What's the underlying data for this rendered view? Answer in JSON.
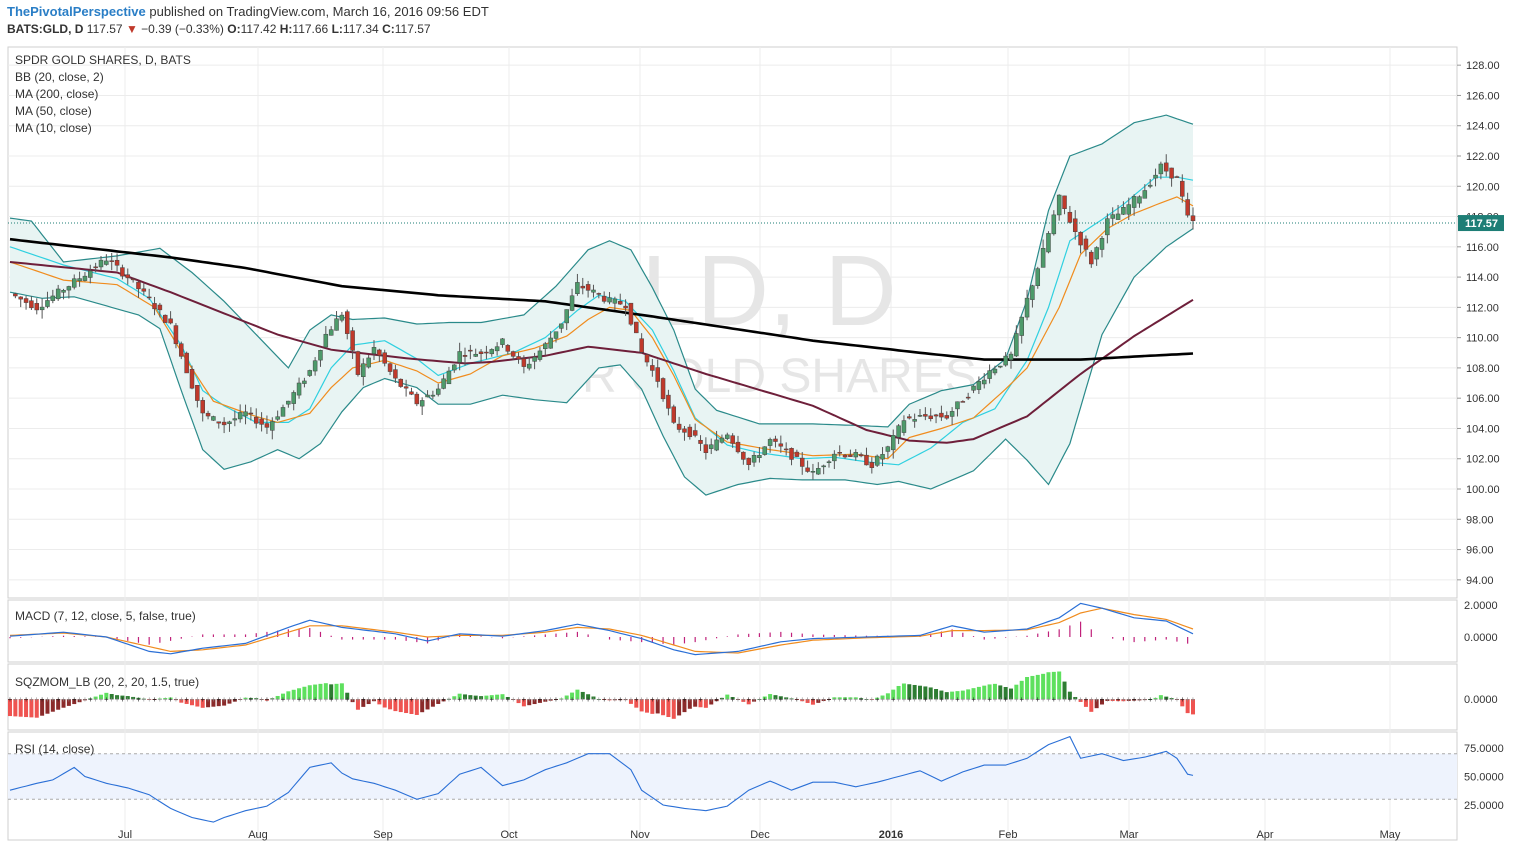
{
  "header": {
    "author": "ThePivotalPerspective",
    "published": "published on TradingView.com, March 16, 2016 09:56 EDT",
    "symbol": "BATS:GLD, D",
    "last": "117.57",
    "change_arrow": "▼",
    "change": "−0.39 (−0.33%)",
    "o_label": "O:",
    "o": "117.42",
    "h_label": "H:",
    "h": "117.66",
    "l_label": "L:",
    "l": "117.34",
    "c_label": "C:",
    "c": "117.57"
  },
  "colors": {
    "up_candle": "#4d9a6a",
    "down_candle": "#c0392b",
    "bb": "#2a8a8a",
    "bb_fill": "#e8f4f3",
    "ma200": "#000000",
    "ma50": "#6e1f3a",
    "ma10": "#f08c1e",
    "basis": "#2fd0e0",
    "macd_line": "#2a6fd6",
    "macd_signal": "#f08c1e",
    "hist": "#c0207a",
    "sqz_pos": "#4caf50",
    "sqz_neg": "#d84b4b",
    "rsi": "#2a6fd6",
    "rsi_band": "#eef3fd",
    "label_bg": "#1e7e76"
  },
  "watermark": {
    "symbol": "GLD, D",
    "name": "SPDR GOLD SHARES"
  },
  "legend": [
    "SPDR GOLD SHARES, D, BATS",
    "BB (20, close, 2)",
    "MA (200, close)",
    "MA (50, close)",
    "MA (10, close)"
  ],
  "panes": {
    "macd": {
      "label": "MACD (7, 12, close, 5, false, true)",
      "ticks": [
        "2.0000",
        "0.0000"
      ]
    },
    "sqz": {
      "label": "SQZMOM_LB (20, 2, 20, 1.5, true)",
      "ticks": [
        "0.0000"
      ]
    },
    "rsi": {
      "label": "RSI (14, close)",
      "ticks": [
        "75.0000",
        "50.0000",
        "25.0000"
      ]
    }
  },
  "last_price_label": "117.57",
  "chart_data": {
    "type": "candlestick",
    "ylim": [
      92.8,
      129.2
    ],
    "y_ticks": [
      "128.00",
      "126.00",
      "124.00",
      "122.00",
      "120.00",
      "118.00",
      "116.00",
      "114.00",
      "112.00",
      "110.00",
      "108.00",
      "106.00",
      "104.00",
      "102.00",
      "100.00",
      "98.00",
      "96.00",
      "94.00"
    ],
    "x_ticks": [
      "Jul",
      "Aug",
      "Sep",
      "Oct",
      "Nov",
      "Dec",
      "2016",
      "Feb",
      "Mar",
      "Apr",
      "May"
    ],
    "price_path": [
      [
        0,
        112.9
      ],
      [
        5,
        112.0
      ],
      [
        12,
        113.7
      ],
      [
        18,
        115.2
      ],
      [
        22,
        114.0
      ],
      [
        26,
        112.5
      ],
      [
        30,
        110.8
      ],
      [
        36,
        104.9
      ],
      [
        40,
        104.3
      ],
      [
        44,
        105.0
      ],
      [
        48,
        104.1
      ],
      [
        52,
        105.8
      ],
      [
        56,
        107.8
      ],
      [
        59,
        110.2
      ],
      [
        62,
        111.6
      ],
      [
        65,
        107.6
      ],
      [
        68,
        109.3
      ],
      [
        72,
        107.2
      ],
      [
        76,
        105.7
      ],
      [
        80,
        106.6
      ],
      [
        84,
        109.0
      ],
      [
        88,
        109.0
      ],
      [
        92,
        109.7
      ],
      [
        96,
        108.0
      ],
      [
        100,
        109.5
      ],
      [
        103,
        111.0
      ],
      [
        106,
        113.5
      ],
      [
        109,
        113.0
      ],
      [
        112,
        112.4
      ],
      [
        115,
        112.2
      ],
      [
        118,
        109.0
      ],
      [
        121,
        107.2
      ],
      [
        124,
        104.2
      ],
      [
        127,
        103.7
      ],
      [
        130,
        102.5
      ],
      [
        134,
        103.7
      ],
      [
        138,
        101.6
      ],
      [
        142,
        103.2
      ],
      [
        146,
        102.2
      ],
      [
        150,
        101.0
      ],
      [
        154,
        102.4
      ],
      [
        158,
        102.2
      ],
      [
        161,
        101.6
      ],
      [
        164,
        102.7
      ],
      [
        167,
        104.6
      ],
      [
        171,
        104.8
      ],
      [
        175,
        104.8
      ],
      [
        179,
        106.3
      ],
      [
        183,
        107.8
      ],
      [
        187,
        108.8
      ],
      [
        190,
        112.5
      ],
      [
        193,
        115.7
      ],
      [
        196,
        119.2
      ],
      [
        199,
        117.0
      ],
      [
        202,
        115.0
      ],
      [
        205,
        117.7
      ],
      [
        208,
        118.4
      ],
      [
        212,
        119.8
      ],
      [
        215,
        121.3
      ],
      [
        218,
        120.5
      ],
      [
        220,
        117.9
      ],
      [
        221,
        117.6
      ]
    ],
    "ma200_path": [
      [
        0,
        116.5
      ],
      [
        30,
        115.3
      ],
      [
        44,
        114.6
      ],
      [
        62,
        113.4
      ],
      [
        80,
        112.8
      ],
      [
        100,
        112.4
      ],
      [
        120,
        111.4
      ],
      [
        150,
        109.8
      ],
      [
        170,
        109.0
      ],
      [
        182,
        108.55
      ],
      [
        200,
        108.55
      ],
      [
        210,
        108.75
      ],
      [
        221,
        108.95
      ]
    ],
    "ma50_path": [
      [
        0,
        115.0
      ],
      [
        20,
        114.3
      ],
      [
        30,
        113.0
      ],
      [
        50,
        110.2
      ],
      [
        60,
        109.2
      ],
      [
        75,
        108.6
      ],
      [
        85,
        108.3
      ],
      [
        90,
        108.4
      ],
      [
        100,
        108.8
      ],
      [
        108,
        109.4
      ],
      [
        118,
        109.0
      ],
      [
        130,
        107.6
      ],
      [
        150,
        105.5
      ],
      [
        160,
        103.9
      ],
      [
        168,
        103.2
      ],
      [
        175,
        103.05
      ],
      [
        180,
        103.3
      ],
      [
        190,
        104.8
      ],
      [
        200,
        107.6
      ],
      [
        210,
        110.1
      ],
      [
        221,
        112.5
      ]
    ],
    "ma10_path": [
      [
        0,
        115.0
      ],
      [
        10,
        113.8
      ],
      [
        20,
        113.5
      ],
      [
        27,
        112.0
      ],
      [
        33,
        108.5
      ],
      [
        38,
        105.8
      ],
      [
        45,
        104.9
      ],
      [
        50,
        104.4
      ],
      [
        56,
        105.0
      ],
      [
        60,
        106.7
      ],
      [
        64,
        108.0
      ],
      [
        70,
        108.5
      ],
      [
        76,
        107.8
      ],
      [
        80,
        107.0
      ],
      [
        86,
        107.6
      ],
      [
        92,
        108.8
      ],
      [
        98,
        109.3
      ],
      [
        104,
        110.1
      ],
      [
        108,
        111.2
      ],
      [
        112,
        112.0
      ],
      [
        116,
        111.8
      ],
      [
        120,
        110.0
      ],
      [
        124,
        107.5
      ],
      [
        128,
        104.6
      ],
      [
        134,
        103.1
      ],
      [
        142,
        102.6
      ],
      [
        150,
        102.2
      ],
      [
        158,
        102.3
      ],
      [
        164,
        102.0
      ],
      [
        168,
        103.4
      ],
      [
        174,
        104.0
      ],
      [
        180,
        104.7
      ],
      [
        186,
        106.6
      ],
      [
        190,
        108.0
      ],
      [
        196,
        112.0
      ],
      [
        200,
        115.5
      ],
      [
        205,
        117.2
      ],
      [
        210,
        118.2
      ],
      [
        215,
        118.9
      ],
      [
        218,
        119.3
      ],
      [
        221,
        118.7
      ]
    ],
    "basis_path": [
      [
        0,
        116.0
      ],
      [
        10,
        114.8
      ],
      [
        20,
        113.9
      ],
      [
        26,
        112.6
      ],
      [
        32,
        109.5
      ],
      [
        36,
        106.5
      ],
      [
        40,
        105.5
      ],
      [
        46,
        104.4
      ],
      [
        52,
        104.4
      ],
      [
        56,
        105.3
      ],
      [
        60,
        108.0
      ],
      [
        64,
        109.5
      ],
      [
        70,
        109.8
      ],
      [
        76,
        108.6
      ],
      [
        80,
        107.5
      ],
      [
        86,
        108.3
      ],
      [
        94,
        109.0
      ],
      [
        100,
        110.0
      ],
      [
        106,
        111.8
      ],
      [
        110,
        112.8
      ],
      [
        115,
        112.4
      ],
      [
        120,
        110.5
      ],
      [
        124,
        107.8
      ],
      [
        128,
        104.7
      ],
      [
        134,
        102.9
      ],
      [
        140,
        102.4
      ],
      [
        148,
        102.0
      ],
      [
        154,
        102.1
      ],
      [
        160,
        101.8
      ],
      [
        166,
        101.6
      ],
      [
        172,
        102.7
      ],
      [
        178,
        104.4
      ],
      [
        184,
        105.3
      ],
      [
        190,
        108.5
      ],
      [
        194,
        112.0
      ],
      [
        198,
        116.4
      ],
      [
        204,
        117.8
      ],
      [
        208,
        118.8
      ],
      [
        214,
        120.6
      ],
      [
        218,
        120.6
      ],
      [
        221,
        120.4
      ]
    ],
    "bb_upper": [
      [
        0,
        117.9
      ],
      [
        4,
        117.7
      ],
      [
        10,
        115.0
      ],
      [
        20,
        115.4
      ],
      [
        28,
        115.9
      ],
      [
        34,
        114.3
      ],
      [
        40,
        112.4
      ],
      [
        46,
        110.2
      ],
      [
        52,
        108.0
      ],
      [
        56,
        110.5
      ],
      [
        60,
        111.5
      ],
      [
        64,
        111.2
      ],
      [
        70,
        111.3
      ],
      [
        76,
        110.9
      ],
      [
        82,
        111.0
      ],
      [
        88,
        111.0
      ],
      [
        96,
        111.5
      ],
      [
        102,
        113.4
      ],
      [
        108,
        115.8
      ],
      [
        112,
        116.4
      ],
      [
        116,
        115.8
      ],
      [
        120,
        113.3
      ],
      [
        124,
        110.5
      ],
      [
        128,
        106.6
      ],
      [
        132,
        105.2
      ],
      [
        140,
        104.3
      ],
      [
        150,
        104.3
      ],
      [
        158,
        104.2
      ],
      [
        164,
        104.1
      ],
      [
        168,
        105.6
      ],
      [
        174,
        106.5
      ],
      [
        180,
        106.9
      ],
      [
        186,
        108.6
      ],
      [
        190,
        112.5
      ],
      [
        194,
        118.4
      ],
      [
        198,
        122.0
      ],
      [
        204,
        122.8
      ],
      [
        210,
        124.2
      ],
      [
        216,
        124.7
      ],
      [
        221,
        124.1
      ]
    ],
    "bb_lower": [
      [
        0,
        113.0
      ],
      [
        6,
        112.6
      ],
      [
        12,
        112.7
      ],
      [
        18,
        112.1
      ],
      [
        24,
        111.5
      ],
      [
        28,
        110.6
      ],
      [
        32,
        106.5
      ],
      [
        36,
        102.6
      ],
      [
        40,
        101.3
      ],
      [
        45,
        101.8
      ],
      [
        50,
        102.6
      ],
      [
        54,
        102.0
      ],
      [
        58,
        103.0
      ],
      [
        62,
        105.1
      ],
      [
        66,
        106.7
      ],
      [
        70,
        107.3
      ],
      [
        76,
        106.7
      ],
      [
        80,
        105.6
      ],
      [
        86,
        105.6
      ],
      [
        92,
        106.2
      ],
      [
        98,
        105.9
      ],
      [
        104,
        105.7
      ],
      [
        110,
        108.0
      ],
      [
        114,
        108.2
      ],
      [
        118,
        106.6
      ],
      [
        122,
        103.5
      ],
      [
        126,
        100.8
      ],
      [
        130,
        99.6
      ],
      [
        136,
        100.3
      ],
      [
        142,
        100.7
      ],
      [
        148,
        100.6
      ],
      [
        156,
        100.6
      ],
      [
        162,
        100.3
      ],
      [
        166,
        100.5
      ],
      [
        172,
        100.0
      ],
      [
        180,
        101.2
      ],
      [
        186,
        103.3
      ],
      [
        190,
        101.9
      ],
      [
        194,
        100.3
      ],
      [
        198,
        103.0
      ],
      [
        204,
        110.2
      ],
      [
        210,
        114.0
      ],
      [
        216,
        116.0
      ],
      [
        221,
        117.2
      ]
    ],
    "macd_path": [
      [
        0,
        0.05
      ],
      [
        10,
        0.3
      ],
      [
        18,
        0.0
      ],
      [
        26,
        -0.9
      ],
      [
        30,
        -1.05
      ],
      [
        36,
        -0.7
      ],
      [
        44,
        -0.4
      ],
      [
        52,
        0.6
      ],
      [
        56,
        1.05
      ],
      [
        62,
        0.6
      ],
      [
        72,
        0.2
      ],
      [
        78,
        -0.25
      ],
      [
        84,
        0.2
      ],
      [
        92,
        0.05
      ],
      [
        100,
        0.4
      ],
      [
        106,
        0.8
      ],
      [
        112,
        0.4
      ],
      [
        118,
        -0.1
      ],
      [
        124,
        -0.8
      ],
      [
        128,
        -1.1
      ],
      [
        136,
        -0.9
      ],
      [
        144,
        -0.3
      ],
      [
        150,
        -0.1
      ],
      [
        160,
        0.0
      ],
      [
        170,
        0.1
      ],
      [
        176,
        0.7
      ],
      [
        182,
        0.3
      ],
      [
        190,
        0.5
      ],
      [
        196,
        1.2
      ],
      [
        200,
        2.1
      ],
      [
        204,
        1.8
      ],
      [
        210,
        1.2
      ],
      [
        216,
        1.0
      ],
      [
        221,
        0.2
      ]
    ],
    "signal_path": [
      [
        0,
        0.1
      ],
      [
        10,
        0.25
      ],
      [
        18,
        0.0
      ],
      [
        26,
        -0.6
      ],
      [
        30,
        -0.9
      ],
      [
        36,
        -0.8
      ],
      [
        44,
        -0.5
      ],
      [
        52,
        0.3
      ],
      [
        56,
        0.7
      ],
      [
        62,
        0.7
      ],
      [
        72,
        0.3
      ],
      [
        78,
        0.0
      ],
      [
        84,
        0.1
      ],
      [
        92,
        0.1
      ],
      [
        100,
        0.3
      ],
      [
        106,
        0.6
      ],
      [
        112,
        0.5
      ],
      [
        118,
        0.1
      ],
      [
        124,
        -0.5
      ],
      [
        128,
        -0.9
      ],
      [
        136,
        -1.0
      ],
      [
        144,
        -0.5
      ],
      [
        150,
        -0.2
      ],
      [
        160,
        -0.05
      ],
      [
        170,
        0.05
      ],
      [
        176,
        0.4
      ],
      [
        182,
        0.4
      ],
      [
        190,
        0.45
      ],
      [
        196,
        0.9
      ],
      [
        200,
        1.5
      ],
      [
        204,
        1.8
      ],
      [
        210,
        1.4
      ],
      [
        216,
        1.1
      ],
      [
        221,
        0.5
      ]
    ],
    "rsi_path": [
      [
        0,
        38
      ],
      [
        5,
        44
      ],
      [
        8,
        47
      ],
      [
        12,
        58
      ],
      [
        14,
        50
      ],
      [
        18,
        44
      ],
      [
        22,
        40
      ],
      [
        26,
        34
      ],
      [
        30,
        22
      ],
      [
        34,
        14
      ],
      [
        38,
        10
      ],
      [
        40,
        14
      ],
      [
        44,
        20
      ],
      [
        48,
        24
      ],
      [
        52,
        36
      ],
      [
        56,
        58
      ],
      [
        60,
        62
      ],
      [
        62,
        53
      ],
      [
        64,
        48
      ],
      [
        68,
        44
      ],
      [
        72,
        38
      ],
      [
        76,
        30
      ],
      [
        80,
        35
      ],
      [
        84,
        52
      ],
      [
        88,
        58
      ],
      [
        92,
        42
      ],
      [
        96,
        47
      ],
      [
        100,
        56
      ],
      [
        104,
        62
      ],
      [
        108,
        70
      ],
      [
        112,
        70
      ],
      [
        116,
        56
      ],
      [
        118,
        38
      ],
      [
        122,
        25
      ],
      [
        126,
        22
      ],
      [
        130,
        20
      ],
      [
        134,
        24
      ],
      [
        138,
        38
      ],
      [
        142,
        46
      ],
      [
        146,
        38
      ],
      [
        150,
        45
      ],
      [
        154,
        45
      ],
      [
        158,
        41
      ],
      [
        162,
        45
      ],
      [
        166,
        50
      ],
      [
        170,
        55
      ],
      [
        174,
        46
      ],
      [
        178,
        54
      ],
      [
        182,
        60
      ],
      [
        186,
        60
      ],
      [
        190,
        66
      ],
      [
        194,
        78
      ],
      [
        198,
        85
      ],
      [
        200,
        66
      ],
      [
        204,
        70
      ],
      [
        208,
        64
      ],
      [
        212,
        67
      ],
      [
        216,
        72
      ],
      [
        218,
        66
      ],
      [
        220,
        52
      ],
      [
        221,
        51
      ]
    ]
  }
}
